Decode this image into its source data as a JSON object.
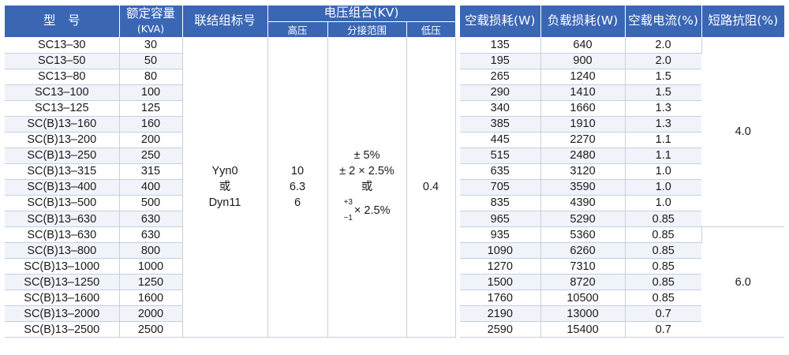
{
  "headers": {
    "model": "型　号",
    "capacity": "额定容量",
    "capacity_unit": "(KVA)",
    "vector_group": "联结组标号",
    "voltage_group": "电压组合(KV)",
    "hv": "高压",
    "tap_range": "分接范围",
    "lv": "低压",
    "no_load_loss": "空载损耗(W)",
    "load_loss": "负载损耗(W)",
    "no_load_current": "空载电流(%)",
    "impedance": "短路抗阻(%)"
  },
  "merged": {
    "vector_group_lines": [
      "Yyn0",
      "或",
      "Dyn11"
    ],
    "hv_lines": [
      "10",
      "6.3",
      "6"
    ],
    "tap_lines": [
      "± 5%",
      "± 2 × 2.5%",
      "或"
    ],
    "tap_frac_top": "+3",
    "tap_frac_bottom": "−1",
    "tap_frac_rest": "× 2.5%",
    "lv": "0.4",
    "impedance_group1": "4.0",
    "impedance_group2": "6.0"
  },
  "rows": [
    {
      "model": "SC13–30",
      "capacity": "30",
      "no_load": "135",
      "load": "640",
      "current": "2.0"
    },
    {
      "model": "SC13–50",
      "capacity": "50",
      "no_load": "195",
      "load": "900",
      "current": "2.0"
    },
    {
      "model": "SC13–80",
      "capacity": "80",
      "no_load": "265",
      "load": "1240",
      "current": "1.5"
    },
    {
      "model": "SC13–100",
      "capacity": "100",
      "no_load": "290",
      "load": "1410",
      "current": "1.5"
    },
    {
      "model": "SC13–125",
      "capacity": "125",
      "no_load": "340",
      "load": "1660",
      "current": "1.3"
    },
    {
      "model": "SC(B)13–160",
      "capacity": "160",
      "no_load": "385",
      "load": "1910",
      "current": "1.3"
    },
    {
      "model": "SC(B)13–200",
      "capacity": "200",
      "no_load": "445",
      "load": "2270",
      "current": "1.1"
    },
    {
      "model": "SC(B)13–250",
      "capacity": "250",
      "no_load": "515",
      "load": "2480",
      "current": "1.1"
    },
    {
      "model": "SC(B)13–315",
      "capacity": "315",
      "no_load": "635",
      "load": "3120",
      "current": "1.0"
    },
    {
      "model": "SC(B)13–400",
      "capacity": "400",
      "no_load": "705",
      "load": "3590",
      "current": "1.0"
    },
    {
      "model": "SC(B)13–500",
      "capacity": "500",
      "no_load": "835",
      "load": "4390",
      "current": "1.0"
    },
    {
      "model": "SC(B)13–630",
      "capacity": "630",
      "no_load": "965",
      "load": "5290",
      "current": "0.85"
    },
    {
      "model": "SC(B)13–630",
      "capacity": "630",
      "no_load": "935",
      "load": "5360",
      "current": "0.85"
    },
    {
      "model": "SC(B)13–800",
      "capacity": "800",
      "no_load": "1090",
      "load": "6260",
      "current": "0.85"
    },
    {
      "model": "SC(B)13–1000",
      "capacity": "1000",
      "no_load": "1270",
      "load": "7310",
      "current": "0.85"
    },
    {
      "model": "SC(B)13–1250",
      "capacity": "1250",
      "no_load": "1500",
      "load": "8720",
      "current": "0.85"
    },
    {
      "model": "SC(B)13–1600",
      "capacity": "1600",
      "no_load": "1760",
      "load": "10500",
      "current": "0.85"
    },
    {
      "model": "SC(B)13–2000",
      "capacity": "2000",
      "no_load": "2190",
      "load": "13000",
      "current": "0.7"
    },
    {
      "model": "SC(B)13–2500",
      "capacity": "2500",
      "no_load": "2590",
      "load": "15400",
      "current": "0.7"
    }
  ],
  "colors": {
    "header_bg": "#3a66b4",
    "header_text": "#ffffff",
    "row_alt": "#f0f4fa",
    "grid": "#c5cfdd"
  }
}
